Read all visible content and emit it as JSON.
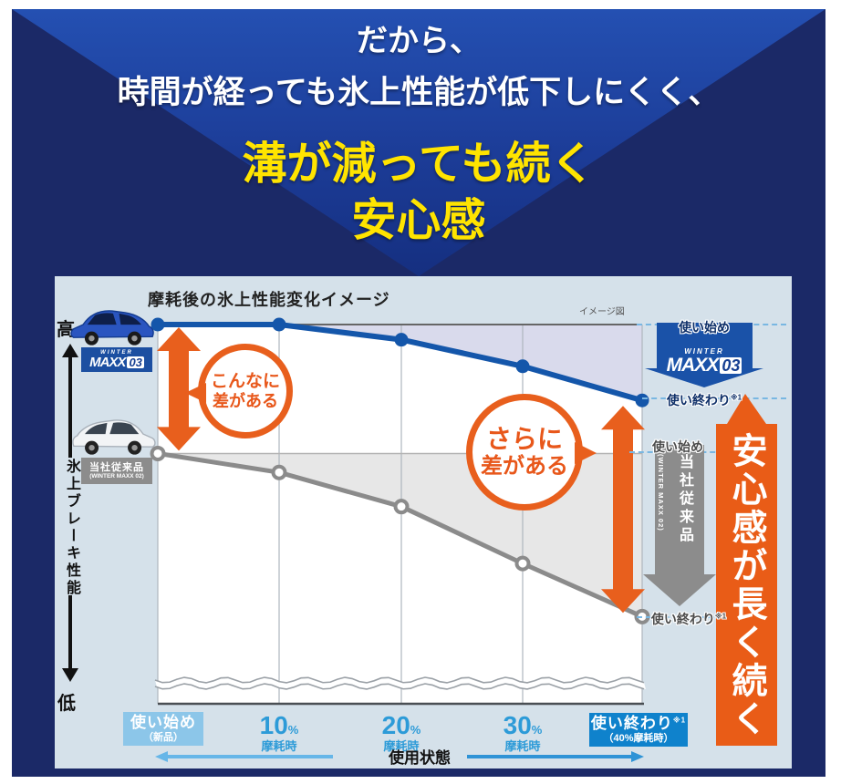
{
  "hero": {
    "line1": "だから、",
    "line2": "時間が経っても氷上性能が低下しにくく、",
    "line3": "溝が減っても続く",
    "line4": "安心感"
  },
  "panel": {
    "title": "摩耗後の氷上性能変化イメージ",
    "image_note": "イメージ図",
    "y_axis": {
      "high": "高",
      "low": "低",
      "label": "氷上ブレーキ性能"
    },
    "x_axis": {
      "title": "使用状態",
      "start_badge": {
        "line1": "使い始め",
        "line2": "（新品）"
      },
      "ticks": [
        {
          "value": "10",
          "unit": "%",
          "sub": "摩耗時"
        },
        {
          "value": "20",
          "unit": "%",
          "sub": "摩耗時"
        },
        {
          "value": "30",
          "unit": "%",
          "sub": "摩耗時"
        }
      ],
      "end_badge": {
        "line1": "使い終わり",
        "note": "※1",
        "line2": "（40%摩耗時）"
      }
    },
    "brand": {
      "top": "WINTER",
      "main": "MAXX",
      "num": "03"
    },
    "conventional": {
      "name": "当社従来品",
      "sub": "(WINTER MAXX 02)"
    },
    "right_labels": {
      "blue_start": "使い始め",
      "blue_end": "使い終わり",
      "blue_end_note": "※1",
      "gray_start": "使い始め",
      "gray_end": "使い終わり",
      "gray_end_note": "※1"
    },
    "annotations": {
      "circle1_line1": "こんなに",
      "circle1_line2": "差がある",
      "circle2_line1": "さらに",
      "circle2_line2": "差がある"
    },
    "banner": "安心感が長く続く"
  },
  "colors": {
    "navy_bg": "#1b2967",
    "hero_yellow": "#ffe400",
    "panel_bg": "#d5e1ea",
    "blue_line": "#1456aa",
    "gray_line": "#8b8b8b",
    "blue_fill_area": "#d9daec",
    "gray_fill_area": "#e7e7e7",
    "orange": "#e85f1d",
    "grid": "#aeb6bd",
    "axis": "#4a4f54",
    "level_blue_start": "#666666",
    "level_gray_start": "#b3b3b3",
    "dash_blue": "#79b7e2",
    "xarrow_left": "#66b6e8",
    "xarrow_right": "#2f93d6"
  },
  "chart_data": {
    "type": "line",
    "title": "摩耗後の氷上性能変化イメージ",
    "note": "イメージ図",
    "categories": [
      "使い始め（新品）",
      "10%摩耗時",
      "20%摩耗時",
      "30%摩耗時",
      "使い終わり※1（40%摩耗時）"
    ],
    "xlabel": "使用状態",
    "ylabel": "氷上ブレーキ性能",
    "y_axis_endpoints": {
      "high": "高",
      "low": "低"
    },
    "ylim": [
      0,
      100
    ],
    "grid": true,
    "series": [
      {
        "name": "WINTER MAXX 03",
        "color": "#1456aa",
        "values": [
          100,
          100,
          96,
          89,
          80
        ]
      },
      {
        "name": "当社従来品（WINTER MAXX 02）",
        "color": "#8b8b8b",
        "values": [
          66,
          61,
          52,
          37,
          23
        ]
      }
    ],
    "annotations": [
      "こんなに差がある",
      "さらに差がある",
      "安心感が長く続く"
    ]
  }
}
